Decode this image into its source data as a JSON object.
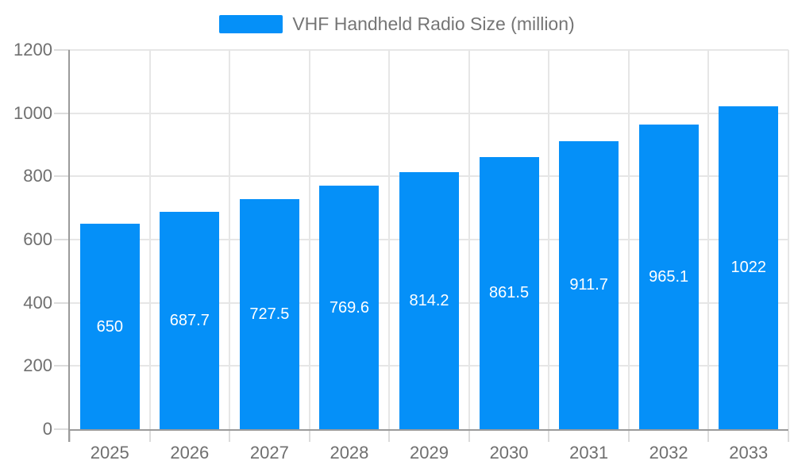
{
  "legend": {
    "label": "VHF Handheld Radio Size (million)"
  },
  "colors": {
    "bar": "#0590f8",
    "grid": "#e6e6e6",
    "tick": "#dcdcdc",
    "axis": "#9b9b9b",
    "axis_text": "#6f6f6f",
    "legend_text": "#757575",
    "bar_label_text": "#ffffff",
    "background": "#ffffff"
  },
  "chart_data": {
    "type": "bar",
    "title": "",
    "xlabel": "",
    "ylabel": "",
    "categories": [
      "2025",
      "2026",
      "2027",
      "2028",
      "2029",
      "2030",
      "2031",
      "2032",
      "2033"
    ],
    "values": [
      650,
      687.7,
      727.5,
      769.6,
      814.2,
      861.5,
      911.7,
      965.1,
      1022
    ],
    "bar_labels": [
      "650",
      "687.7",
      "727.5",
      "769.6",
      "814.2",
      "861.5",
      "911.7",
      "965.1",
      "1022"
    ],
    "series_name": "VHF Handheld Radio Size (million)",
    "ylim": [
      0,
      1200
    ],
    "yticks": [
      0,
      200,
      400,
      600,
      800,
      1000,
      1200
    ],
    "grid": true,
    "legend_position": "top"
  }
}
